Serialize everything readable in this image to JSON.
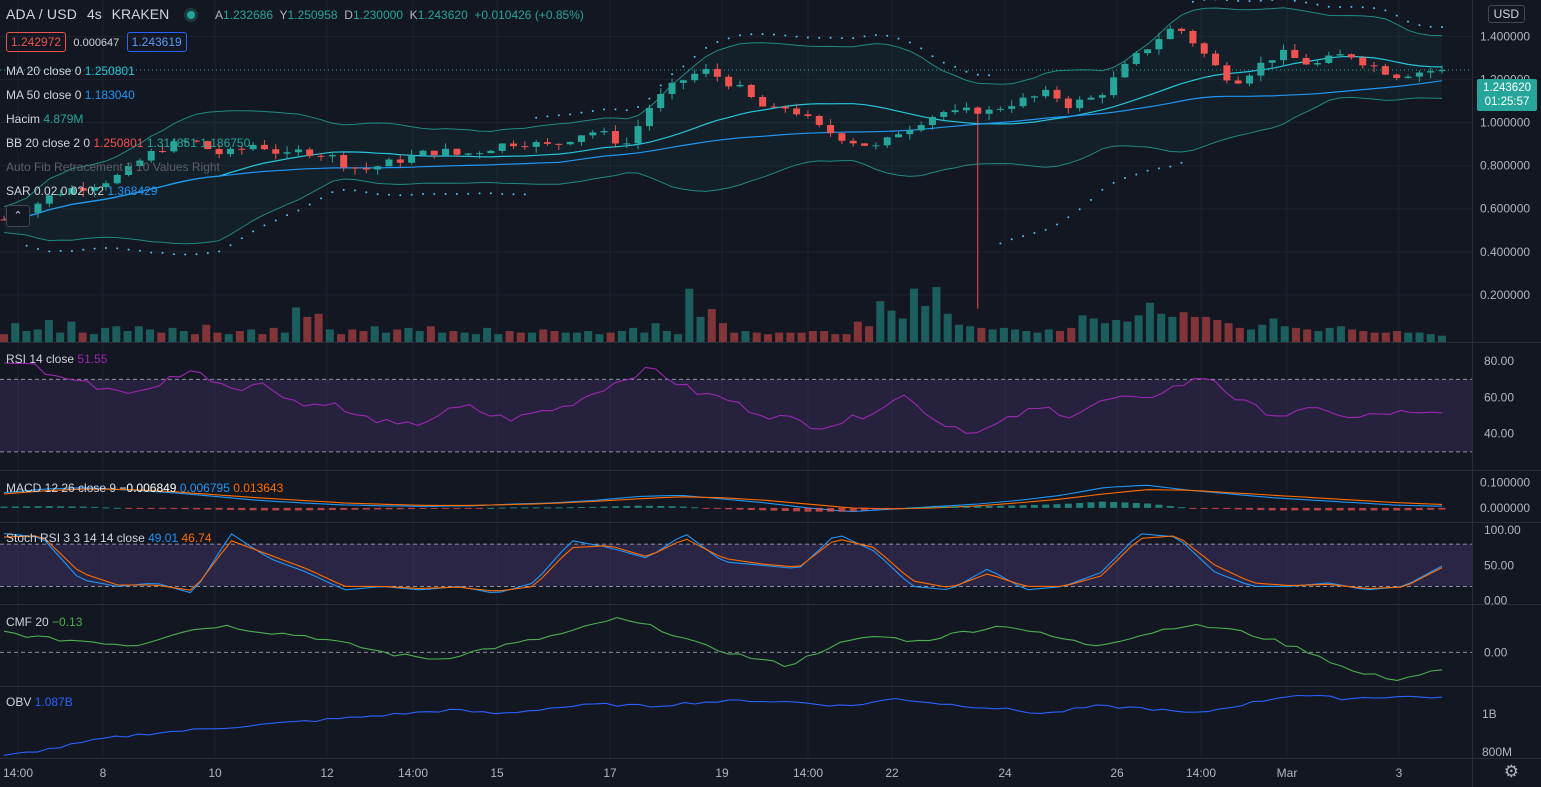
{
  "header": {
    "symbol": "ADA / USD",
    "interval": "4s",
    "exchange": "KRAKEN",
    "open_label": "A",
    "open": "1.232686",
    "high_label": "Y",
    "high": "1.250958",
    "low_label": "D",
    "low": "1.230000",
    "close_label": "K",
    "close": "1.243620",
    "change": "+0.010426 (+0.85%)",
    "sell_price": "1.242972",
    "spread": "0.000647",
    "buy_price": "1.243619"
  },
  "indicators": {
    "ma20": {
      "label": "MA 20 close 0",
      "value": "1.250801"
    },
    "ma50": {
      "label": "MA 50 close 0",
      "value": "1.183040"
    },
    "volume": {
      "label": "Hacim",
      "value": "4.879M"
    },
    "bb": {
      "label": "BB 20 close 2 0",
      "basis": "1.250801",
      "upper": "1.314851",
      "lower": "1.186750"
    },
    "fib": {
      "label": "Auto Fib Retracement 3 10 Values Right"
    },
    "sar": {
      "label": "SAR 0.02 0.02 0.2",
      "value": "1.368429"
    },
    "rsi": {
      "label": "RSI 14 close",
      "value": "51.55"
    },
    "macd": {
      "label": "MACD 12 26 close 9",
      "hist": "−0.006849",
      "macd": "0.006795",
      "signal": "0.013643"
    },
    "stoch": {
      "label": "Stoch RSI 3 3 14 14 close",
      "k": "49.01",
      "d": "46.74"
    },
    "cmf": {
      "label": "CMF 20",
      "value": "−0.13"
    },
    "obv": {
      "label": "OBV",
      "value": "1.087B"
    }
  },
  "price_axis": {
    "currency_button": "USD",
    "last_price": "1.243620",
    "countdown": "01:25:57"
  },
  "icons": {
    "collapse": "chevron-up-icon",
    "settings": "gear-icon",
    "live": "live-dot-icon"
  },
  "colors": {
    "up": "#26a69a",
    "down": "#ef5350",
    "ma20": "#26c6da",
    "ma50": "#2196f3",
    "rsi": "#9c27b0",
    "macd": "#2196f3",
    "signal": "#ff6d00",
    "cmf": "#4caf50",
    "obv": "#2962ff"
  },
  "chart_data": [
    {
      "type": "candlestick",
      "title": "ADA / USD",
      "x_ticks": [
        "14:00",
        "8",
        "10",
        "12",
        "14:00",
        "15",
        "17",
        "19",
        "14:00",
        "22",
        "24",
        "26",
        "14:00",
        "Mar",
        "3"
      ],
      "y_ticks": [
        "1.400000",
        "1.200000",
        "1.000000",
        "0.800000",
        "0.600000",
        "0.400000",
        "0.200000"
      ],
      "ylim": [
        0.0,
        1.55
      ],
      "y_anchors": [
        0.55,
        0.58,
        0.62,
        0.66,
        0.69,
        0.7,
        0.72,
        0.74,
        0.78,
        0.84,
        0.88,
        0.9,
        0.92,
        0.88,
        0.85,
        0.87,
        0.9,
        0.88,
        0.84,
        0.87,
        0.86,
        0.84,
        0.8,
        0.78,
        0.8,
        0.82,
        0.84,
        0.86,
        0.87,
        0.85,
        0.86,
        0.88,
        0.9,
        0.91,
        0.9,
        0.89,
        0.92,
        0.95,
        0.96,
        0.92,
        0.9,
        1.05,
        1.12,
        1.18,
        1.22,
        1.24,
        1.2,
        1.16,
        1.1,
        1.05,
        1.07,
        1.04,
        0.98,
        0.95,
        0.92,
        0.9,
        0.88,
        0.95,
        0.98,
        1.02,
        1.05,
        1.04,
        1.06,
        1.05,
        1.08,
        1.1,
        1.12,
        1.14,
        1.08,
        1.1,
        1.12,
        1.2,
        1.28,
        1.34,
        1.4,
        1.45,
        1.38,
        1.3,
        1.22,
        1.2,
        1.25,
        1.3,
        1.32,
        1.28,
        1.27,
        1.3,
        1.32,
        1.28,
        1.25,
        1.22,
        1.23,
        1.24,
        1.24
      ],
      "last_close": 1.24362
    },
    {
      "type": "bar",
      "name": "Hacim",
      "values": [
        0.5,
        1.2,
        0.7,
        0.8,
        1.4,
        0.6,
        1.3,
        0.6,
        0.5,
        0.9,
        1.0,
        0.7,
        1.0,
        0.8,
        0.6,
        0.9,
        0.7,
        0.5,
        1.1,
        0.6,
        0.5,
        0.7,
        0.8,
        0.5,
        0.9,
        0.6,
        2.2,
        1.6,
        1.8,
        0.8,
        0.5,
        0.8,
        0.7,
        1.0,
        0.6,
        0.8,
        0.9,
        0.7,
        1.0,
        0.6,
        0.7,
        0.6,
        0.5,
        0.9,
        0.5,
        0.7,
        0.6,
        0.6,
        0.8,
        0.7,
        0.6,
        0.6,
        0.7,
        0.5,
        0.6,
        0.7,
        0.9,
        0.6,
        1.2,
        0.7,
        0.5,
        3.4,
        1.6,
        2.1,
        1.2,
        0.6,
        0.7,
        0.6,
        0.5,
        0.6,
        0.6,
        0.6,
        0.7,
        0.7,
        0.5,
        0.5,
        1.3,
        1.0,
        2.6,
        2.0,
        1.5,
        3.4,
        2.3,
        3.5,
        1.8,
        1.1,
        1.0,
        0.9,
        0.8,
        0.9,
        0.8,
        0.7,
        0.6,
        0.8,
        0.7,
        0.9,
        1.7,
        1.5,
        1.2,
        1.4,
        1.3,
        1.7,
        2.5,
        1.8,
        1.6,
        1.9,
        1.6,
        1.6,
        1.4,
        1.2,
        0.9,
        0.8,
        1.1,
        1.5,
        1.0,
        0.9,
        0.8,
        0.7,
        0.9,
        1.0,
        0.8,
        0.7,
        0.6,
        0.6,
        0.7,
        0.6,
        0.6,
        0.5,
        0.4
      ]
    },
    {
      "type": "line",
      "name": "RSI 14 close",
      "y_ticks": [
        "80.00",
        "60.00",
        "40.00"
      ],
      "ylim": [
        20,
        90
      ],
      "anchors": [
        78,
        80,
        72,
        70,
        66,
        64,
        62,
        70,
        75,
        70,
        65,
        68,
        62,
        55,
        58,
        50,
        48,
        44,
        46,
        52,
        55,
        50,
        48,
        52,
        54,
        60,
        66,
        72,
        76,
        68,
        62,
        60,
        54,
        50,
        48,
        44,
        46,
        50,
        56,
        62,
        48,
        44,
        40,
        46,
        52,
        54,
        50,
        56,
        60,
        58,
        64,
        68,
        72,
        60,
        54,
        50,
        52,
        54,
        48,
        50,
        52,
        50,
        51.55
      ]
    },
    {
      "type": "line",
      "name": "MACD 12 26 close 9",
      "y_ticks": [
        "0.100000",
        "0.000000"
      ],
      "ylim": [
        -0.04,
        0.13
      ],
      "macd_anchors": [
        0.06,
        0.075,
        0.08,
        0.07,
        0.06,
        0.045,
        0.03,
        0.02,
        0.012,
        0.008,
        0.006,
        0.008,
        0.015,
        0.02,
        0.03,
        0.045,
        0.05,
        0.035,
        0.02,
        0.0,
        -0.015,
        -0.005,
        0.005,
        0.015,
        0.03,
        0.05,
        0.08,
        0.09,
        0.07,
        0.055,
        0.04,
        0.03,
        0.02,
        0.01,
        0.006795
      ],
      "signal_anchors": [
        0.055,
        0.068,
        0.075,
        0.072,
        0.064,
        0.052,
        0.04,
        0.03,
        0.02,
        0.014,
        0.01,
        0.01,
        0.013,
        0.018,
        0.026,
        0.036,
        0.044,
        0.04,
        0.03,
        0.015,
        0.0,
        -0.004,
        0.0,
        0.008,
        0.02,
        0.035,
        0.055,
        0.072,
        0.07,
        0.06,
        0.05,
        0.04,
        0.03,
        0.02,
        0.013643
      ]
    },
    {
      "type": "line",
      "name": "Stoch RSI 3 3 14 14 close",
      "y_ticks": [
        "100.00",
        "50.00",
        "0.00"
      ],
      "ylim": [
        -5,
        110
      ],
      "k_anchors": [
        95,
        90,
        30,
        20,
        25,
        10,
        95,
        60,
        40,
        15,
        20,
        15,
        20,
        10,
        25,
        85,
        75,
        60,
        95,
        55,
        50,
        45,
        95,
        70,
        20,
        15,
        45,
        15,
        20,
        40,
        95,
        90,
        40,
        20,
        20,
        25,
        15,
        20,
        49.01
      ],
      "d_anchors": [
        90,
        92,
        40,
        22,
        22,
        14,
        85,
        65,
        45,
        20,
        20,
        17,
        19,
        13,
        20,
        75,
        78,
        62,
        88,
        60,
        52,
        47,
        88,
        75,
        28,
        18,
        38,
        20,
        20,
        35,
        88,
        92,
        50,
        25,
        21,
        23,
        17,
        19,
        46.74
      ]
    },
    {
      "type": "line",
      "name": "CMF 20",
      "y_ticks": [
        "0.00"
      ],
      "ylim": [
        -0.25,
        0.35
      ],
      "anchors": [
        0.15,
        0.1,
        0.08,
        0.05,
        0.15,
        0.2,
        0.15,
        0.12,
        0.05,
        -0.02,
        -0.05,
        0.02,
        0.08,
        0.15,
        0.25,
        0.18,
        0.05,
        -0.03,
        -0.1,
        0.05,
        0.12,
        0.08,
        0.15,
        0.2,
        0.12,
        0.05,
        0.12,
        0.2,
        0.18,
        0.1,
        0.0,
        -0.15,
        -0.2,
        -0.13
      ]
    },
    {
      "type": "line",
      "name": "OBV",
      "y_ticks": [
        "1B",
        "800M"
      ],
      "ylim": [
        0.77,
        1.14
      ],
      "anchors": [
        0.78,
        0.82,
        0.87,
        0.9,
        0.92,
        0.94,
        0.96,
        0.98,
        1.0,
        1.02,
        1.0,
        1.03,
        1.05,
        1.04,
        1.06,
        1.07,
        1.06,
        1.04,
        1.08,
        1.05,
        1.03,
        1.0,
        1.04,
        1.03,
        1.0,
        1.05,
        1.1,
        1.08,
        1.09,
        1.087
      ]
    }
  ]
}
